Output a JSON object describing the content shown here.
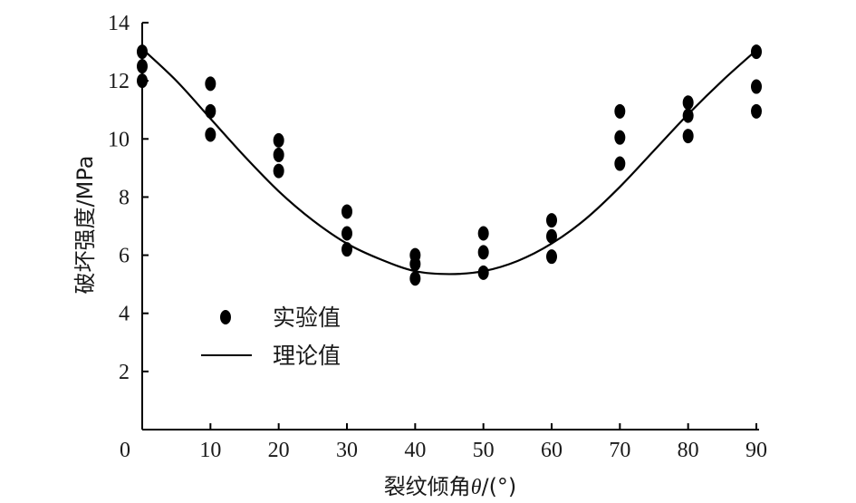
{
  "chart_data": {
    "type": "scatter",
    "xlabel_prefix": "裂纹倾角",
    "xlabel_symbol": "θ",
    "xlabel_suffix": "/(°)",
    "ylabel": "破坏强度/MPa",
    "xlim": [
      0,
      90
    ],
    "ylim": [
      0,
      14
    ],
    "x_ticks": [
      "0",
      "10",
      "20",
      "30",
      "40",
      "50",
      "60",
      "70",
      "80",
      "90"
    ],
    "y_ticks": [
      "2",
      "4",
      "6",
      "8",
      "10",
      "12",
      "14"
    ],
    "grid": false,
    "legend_position": "lower-left",
    "series": [
      {
        "name": "实验值",
        "kind": "points",
        "color": "#000000",
        "points": [
          [
            0,
            13.0
          ],
          [
            0,
            12.5
          ],
          [
            0,
            12.0
          ],
          [
            10,
            11.9
          ],
          [
            10,
            10.95
          ],
          [
            10,
            10.15
          ],
          [
            20,
            9.95
          ],
          [
            20,
            9.45
          ],
          [
            20,
            8.9
          ],
          [
            30,
            7.5
          ],
          [
            30,
            6.75
          ],
          [
            30,
            6.2
          ],
          [
            40,
            6.0
          ],
          [
            40,
            5.7
          ],
          [
            40,
            5.2
          ],
          [
            50,
            6.75
          ],
          [
            50,
            6.1
          ],
          [
            50,
            5.4
          ],
          [
            60,
            7.2
          ],
          [
            60,
            6.65
          ],
          [
            60,
            5.95
          ],
          [
            70,
            10.95
          ],
          [
            70,
            10.05
          ],
          [
            70,
            9.15
          ],
          [
            80,
            11.25
          ],
          [
            80,
            10.8
          ],
          [
            80,
            10.1
          ],
          [
            90,
            13.0
          ],
          [
            90,
            11.8
          ],
          [
            90,
            10.95
          ]
        ]
      },
      {
        "name": "理论值",
        "kind": "line",
        "color": "#000000",
        "points": [
          [
            0,
            13.1
          ],
          [
            5,
            12.0
          ],
          [
            10,
            10.7
          ],
          [
            15,
            9.4
          ],
          [
            20,
            8.2
          ],
          [
            25,
            7.2
          ],
          [
            30,
            6.4
          ],
          [
            35,
            5.85
          ],
          [
            40,
            5.45
          ],
          [
            45,
            5.35
          ],
          [
            50,
            5.45
          ],
          [
            55,
            5.8
          ],
          [
            60,
            6.4
          ],
          [
            65,
            7.25
          ],
          [
            70,
            8.35
          ],
          [
            75,
            9.6
          ],
          [
            80,
            10.85
          ],
          [
            85,
            12.0
          ],
          [
            90,
            13.05
          ]
        ]
      }
    ]
  }
}
